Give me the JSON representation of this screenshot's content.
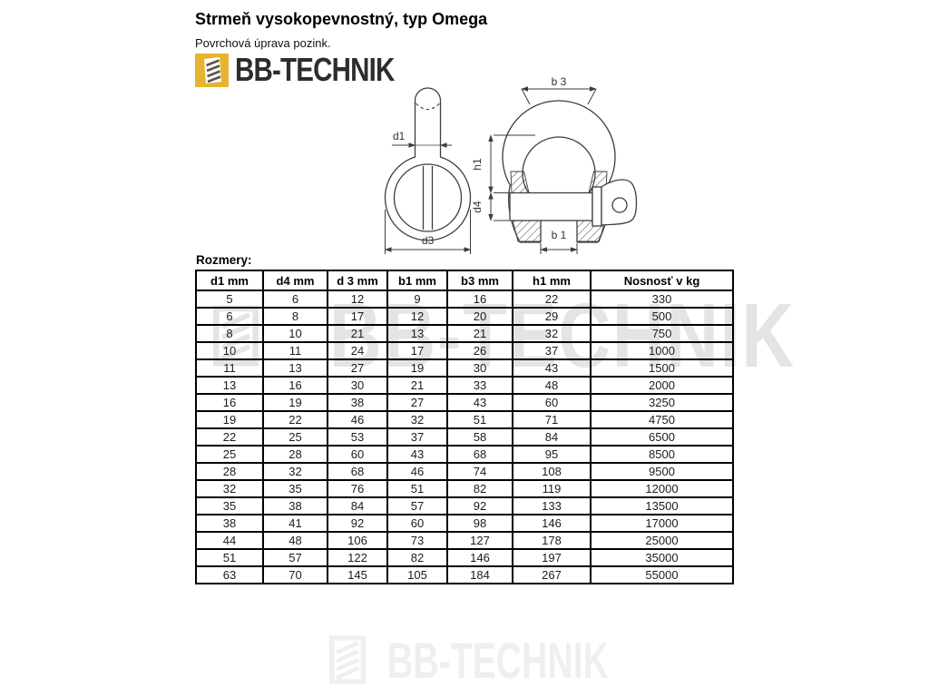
{
  "page": {
    "title": "Strmeň vysokopevnostný, typ Omega",
    "subtitle": "Povrchová úprava pozink.",
    "brand": "BB-TECHNIK",
    "table_caption": "Rozmery:"
  },
  "watermark": {
    "text": "BB-TECHNIK"
  },
  "drawing": {
    "labels": {
      "d1": "d1",
      "d3": "d3",
      "b3": "b 3",
      "h1": "h1",
      "d4": "d4",
      "b1": "b 1"
    }
  },
  "table": {
    "columns": [
      "d1 mm",
      "d4 mm",
      "d 3 mm",
      "b1 mm",
      "b3 mm",
      "h1 mm",
      "Nosnosť v kg"
    ],
    "rows": [
      [
        5,
        6,
        12,
        9,
        16,
        22,
        330
      ],
      [
        6,
        8,
        17,
        12,
        20,
        29,
        500
      ],
      [
        8,
        10,
        21,
        13,
        21,
        32,
        750
      ],
      [
        10,
        11,
        24,
        17,
        26,
        37,
        1000
      ],
      [
        11,
        13,
        27,
        19,
        30,
        43,
        1500
      ],
      [
        13,
        16,
        30,
        21,
        33,
        48,
        2000
      ],
      [
        16,
        19,
        38,
        27,
        43,
        60,
        3250
      ],
      [
        19,
        22,
        46,
        32,
        51,
        71,
        4750
      ],
      [
        22,
        25,
        53,
        37,
        58,
        84,
        6500
      ],
      [
        25,
        28,
        60,
        43,
        68,
        95,
        8500
      ],
      [
        28,
        32,
        68,
        46,
        74,
        108,
        9500
      ],
      [
        32,
        35,
        76,
        51,
        82,
        119,
        12000
      ],
      [
        35,
        38,
        84,
        57,
        92,
        133,
        13500
      ],
      [
        38,
        41,
        92,
        60,
        98,
        146,
        17000
      ],
      [
        44,
        48,
        106,
        73,
        127,
        178,
        25000
      ],
      [
        51,
        57,
        122,
        82,
        146,
        197,
        35000
      ],
      [
        63,
        70,
        145,
        105,
        184,
        267,
        55000
      ]
    ]
  },
  "colors": {
    "brand_gold": "#E7B330",
    "watermark_mid": "#e4e4e4",
    "watermark_bottom": "#efefef"
  }
}
